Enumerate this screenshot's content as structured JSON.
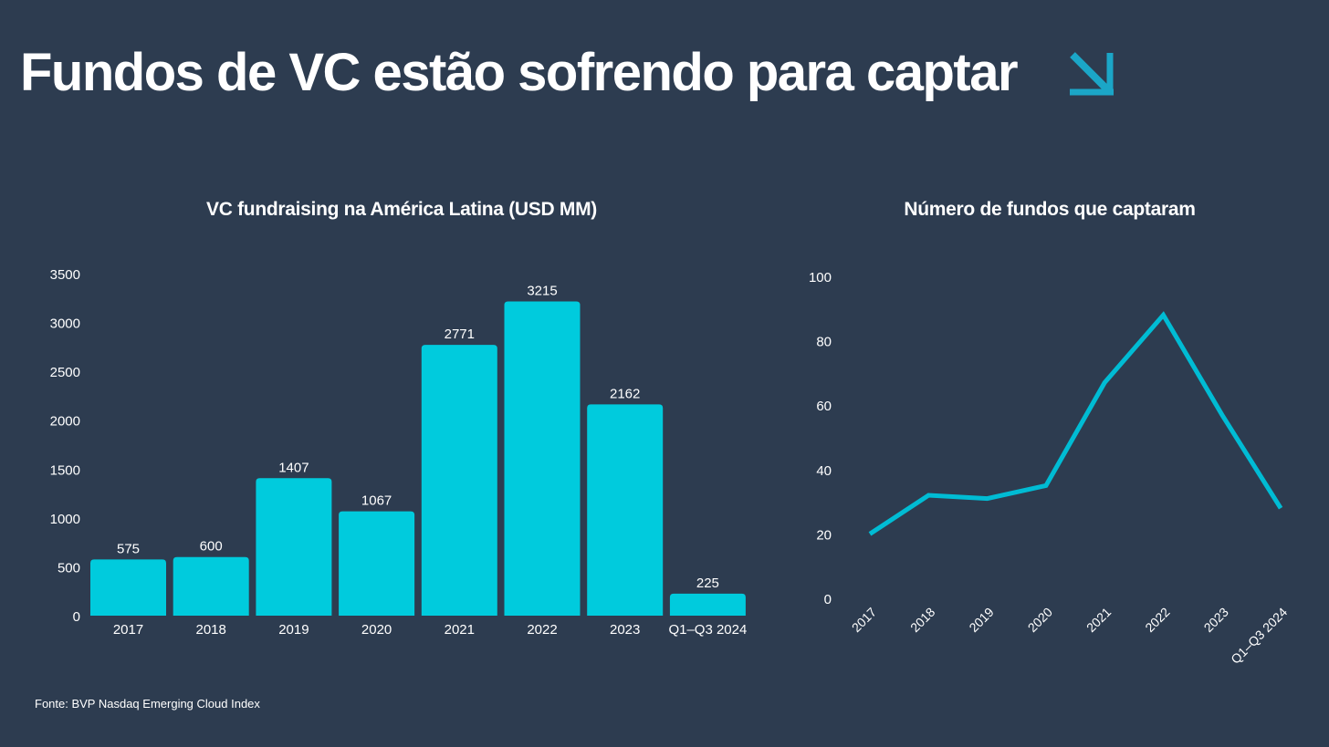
{
  "header": {
    "title": "Fundos de VC estão sofrendo para captar",
    "arrow_icon": "arrow-down-right-icon",
    "arrow_color": "#1ba6c7"
  },
  "footer": {
    "source": "Fonte: BVP Nasdaq Emerging Cloud Index"
  },
  "colors": {
    "background": "#2d3c50",
    "bar": "#00cbdd",
    "line": "#00bcd4",
    "text": "#ffffff"
  },
  "chart_data": [
    {
      "type": "bar",
      "title": "VC fundraising na América Latina (USD MM)",
      "categories": [
        "2017",
        "2018",
        "2019",
        "2020",
        "2021",
        "2022",
        "2023",
        "Q1–Q3 2024"
      ],
      "values": [
        575,
        600,
        1407,
        1067,
        2771,
        3215,
        2162,
        225
      ],
      "data_labels": [
        "575",
        "600",
        "1407",
        "1067",
        "2771",
        "3215",
        "2162",
        "225"
      ],
      "ylim": [
        0,
        3500
      ],
      "yticks": [
        "0",
        "500",
        "1000",
        "1500",
        "2000",
        "2500",
        "3000",
        "3500"
      ],
      "grid": false
    },
    {
      "type": "line",
      "title": "Número de fundos que captaram",
      "categories": [
        "2017",
        "2018",
        "2019",
        "2020",
        "2021",
        "2022",
        "2023",
        "Q1–Q3 2024"
      ],
      "values": [
        20,
        32,
        31,
        35,
        67,
        88,
        57,
        28
      ],
      "ylim": [
        0,
        100
      ],
      "yticks": [
        "0",
        "20",
        "40",
        "60",
        "80",
        "100"
      ],
      "grid": false
    }
  ]
}
